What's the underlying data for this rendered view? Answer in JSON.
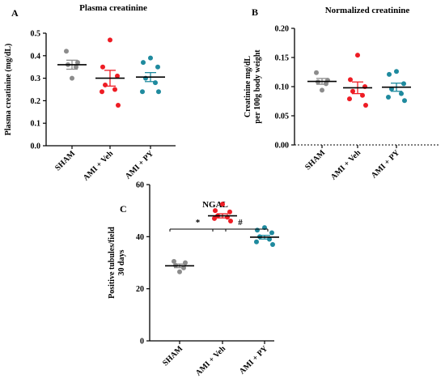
{
  "colors": {
    "sham": "#8c8c8c",
    "veh": "#ee1c24",
    "py": "#1f8a9e",
    "axis": "#000000"
  },
  "chart_data": [
    {
      "panel": "A",
      "type": "scatter",
      "title": "Plasma creatinine",
      "xlabel": "",
      "ylabel": "Plasma creatinine (mg/dL)",
      "ylim": [
        0,
        0.5
      ],
      "yticks": [
        "0.0",
        "0.1",
        "0.2",
        "0.3",
        "0.4",
        "0.5"
      ],
      "categories": [
        "SHAM",
        "AMI + Veh",
        "AMI + PY"
      ],
      "series": [
        {
          "category": "SHAM",
          "points": [
            0.42,
            0.37,
            0.36,
            0.35,
            0.3
          ],
          "mean": 0.36,
          "sem": 0.02
        },
        {
          "category": "AMI + Veh",
          "points": [
            0.47,
            0.35,
            0.31,
            0.27,
            0.25,
            0.24,
            0.18
          ],
          "mean": 0.3,
          "sem": 0.035
        },
        {
          "category": "AMI + PY",
          "points": [
            0.39,
            0.37,
            0.35,
            0.3,
            0.28,
            0.24,
            0.24
          ],
          "mean": 0.305,
          "sem": 0.02
        }
      ],
      "grid": false
    },
    {
      "panel": "B",
      "type": "scatter",
      "title": "Normalized creatinine",
      "xlabel": "",
      "ylabel": "Creatinine mg/dL per 100g body weight",
      "ylabel_lines": [
        "Creatinine mg/dL",
        "per 100g body weight"
      ],
      "ylim": [
        0,
        0.2
      ],
      "yticks": [
        "0.00",
        "0.05",
        "0.10",
        "0.15",
        "0.20"
      ],
      "categories": [
        "SHAM",
        "AMI + Veh",
        "AMI + PY"
      ],
      "series": [
        {
          "category": "SHAM",
          "points": [
            0.124,
            0.111,
            0.108,
            0.105,
            0.094
          ],
          "mean": 0.109,
          "sem": 0.005
        },
        {
          "category": "AMI + Veh",
          "points": [
            0.154,
            0.112,
            0.1,
            0.092,
            0.085,
            0.079,
            0.068
          ],
          "mean": 0.098,
          "sem": 0.01
        },
        {
          "category": "AMI + PY",
          "points": [
            0.126,
            0.121,
            0.105,
            0.096,
            0.088,
            0.082,
            0.076
          ],
          "mean": 0.099,
          "sem": 0.007
        }
      ],
      "grid": false
    },
    {
      "panel": "C",
      "type": "scatter",
      "title": "NGAL",
      "xlabel": "",
      "ylabel": "Positive tubules/field 30 days",
      "ylabel_lines": [
        "Positive tubules/field",
        "30 days"
      ],
      "ylim": [
        0,
        60
      ],
      "yticks": [
        "0",
        "20",
        "40",
        "60"
      ],
      "categories": [
        "SHAM",
        "AMI + Veh",
        "AMI + PY"
      ],
      "series": [
        {
          "category": "SHAM",
          "points": [
            30.5,
            30.0,
            29.0,
            28.0,
            26.5
          ],
          "mean": 28.8,
          "sem": 0.7
        },
        {
          "category": "AMI + Veh",
          "points": [
            52.5,
            50.0,
            49.5,
            48.0,
            47.5,
            47.0,
            46.0
          ],
          "mean": 48.0,
          "sem": 0.8
        },
        {
          "category": "AMI + PY",
          "points": [
            43.5,
            42.5,
            41.5,
            40.0,
            39.0,
            38.0,
            37.0
          ],
          "mean": 39.8,
          "sem": 0.7
        }
      ],
      "annotations": [
        {
          "label": "*",
          "from": "SHAM",
          "to": "AMI + Veh"
        },
        {
          "label": "#",
          "from": "AMI + Veh",
          "to": "AMI + PY"
        }
      ],
      "grid": false
    }
  ]
}
